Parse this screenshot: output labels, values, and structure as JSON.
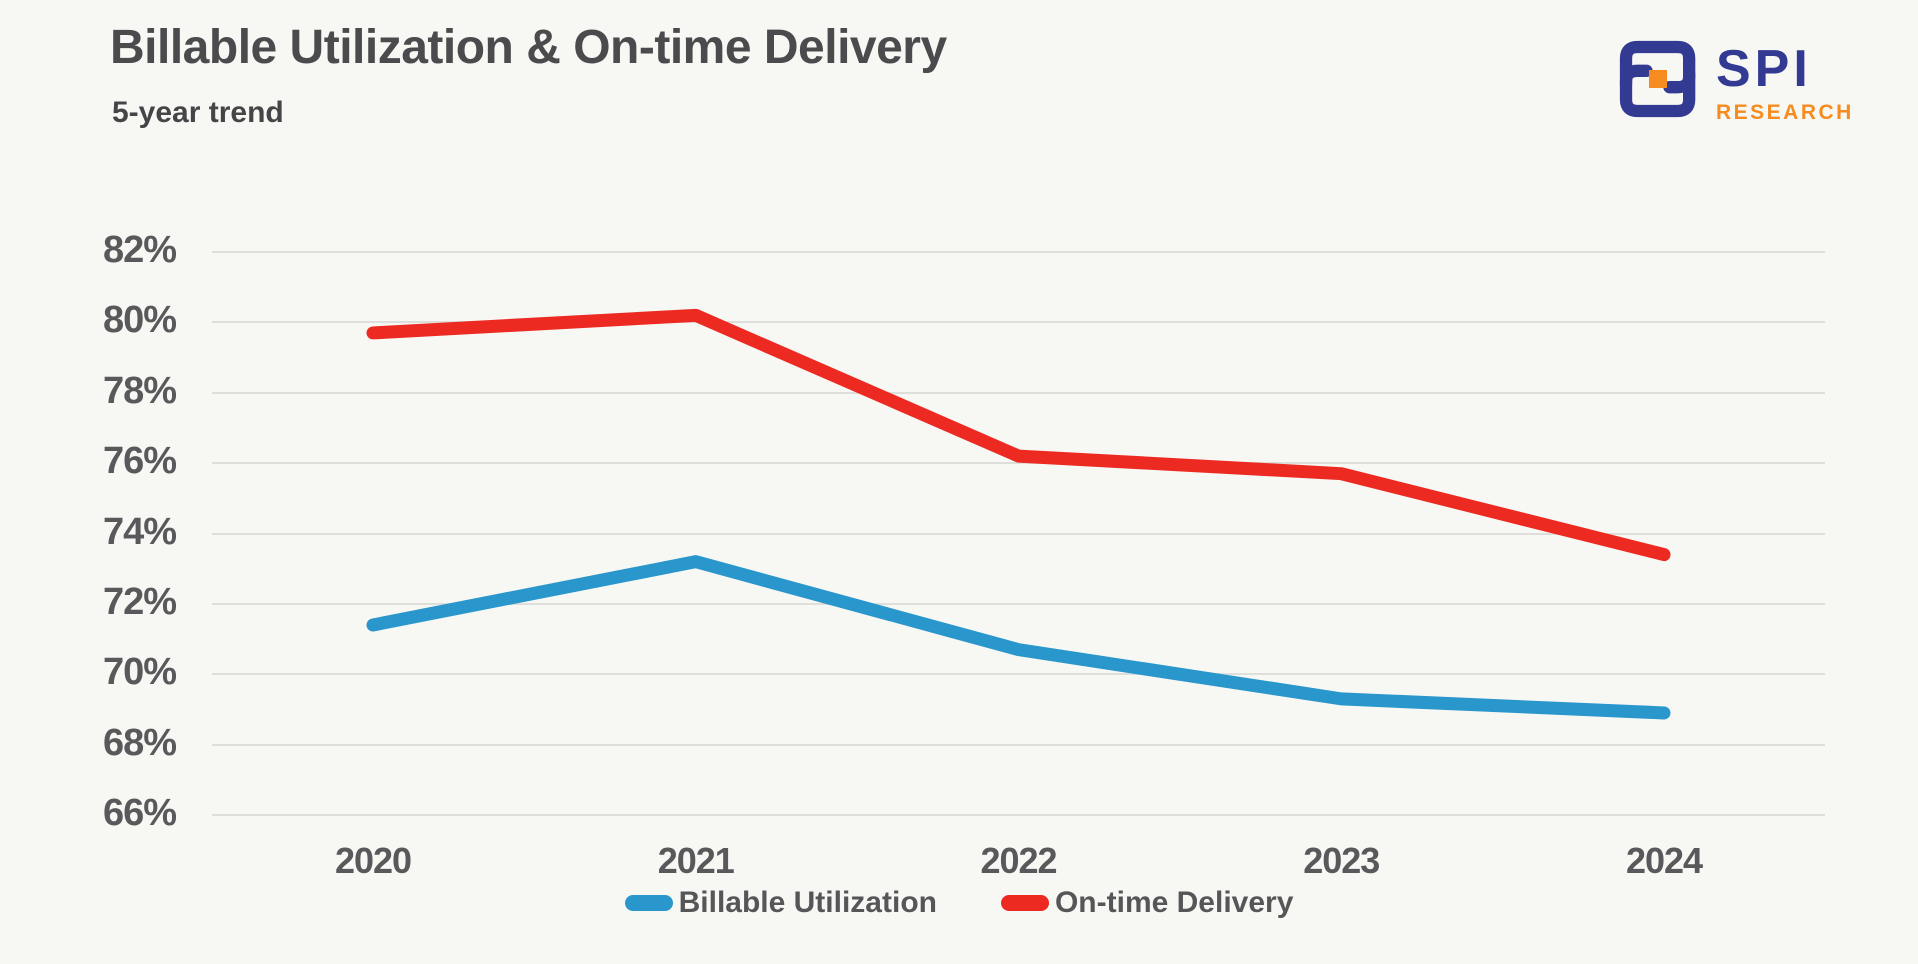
{
  "header": {
    "title": "Billable Utilization & On-time Delivery",
    "subtitle": "5-year trend"
  },
  "logo": {
    "name": "SPI Research",
    "text": "SPI",
    "subtext": "RESEARCH",
    "navy": "#333a92",
    "orange": "#f68c1f"
  },
  "chart_data": {
    "type": "line",
    "title": "Billable Utilization & On-time Delivery",
    "subtitle": "5-year trend",
    "categories": [
      "2020",
      "2021",
      "2022",
      "2023",
      "2024"
    ],
    "series": [
      {
        "name": "Billable Utilization",
        "color": "#2996cc",
        "values": [
          71.4,
          73.2,
          70.7,
          69.3,
          68.9
        ]
      },
      {
        "name": "On-time Delivery",
        "color": "#ec2a21",
        "values": [
          79.7,
          80.2,
          76.2,
          75.7,
          73.4
        ]
      }
    ],
    "xlabel": "",
    "ylabel": "",
    "ylim": [
      66,
      82
    ],
    "yticks": [
      82,
      80,
      78,
      76,
      74,
      72,
      70,
      68,
      66
    ],
    "ytick_suffix": "%",
    "grid": "horizontal",
    "gridline_color": "#dededa",
    "tick_color": "#59595b",
    "background": "#f7f7f4",
    "legend_position": "bottom"
  }
}
